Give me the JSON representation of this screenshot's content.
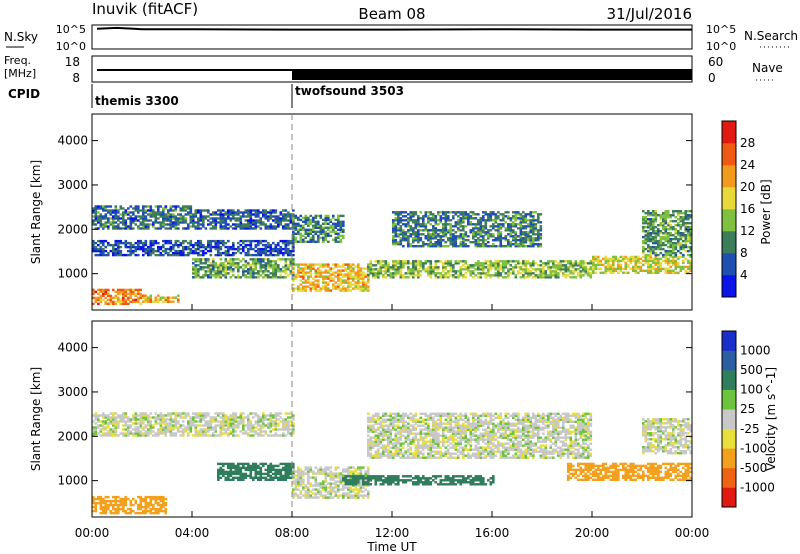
{
  "header": {
    "station": "Inuvik (fitACF)",
    "beam": "Beam 08",
    "date": "31/Jul/2016"
  },
  "noise_panel": {
    "left_label": "N.Sky",
    "right_label": "N.Search",
    "left_ticks": [
      "10^5",
      "10^0"
    ],
    "right_ticks": [
      "10^5",
      "10^0"
    ]
  },
  "freq_panel": {
    "left_label_1": "Freq.",
    "left_label_2": "[MHz]",
    "right_label": "Nave",
    "left_ticks": [
      "18",
      "8"
    ],
    "right_ticks": [
      "60",
      "0"
    ]
  },
  "cpid_panel": {
    "label": "CPID",
    "modes": [
      {
        "name": "themis 3300",
        "start_hour": 0
      },
      {
        "name": "twofsound 3503",
        "start_hour": 8
      }
    ]
  },
  "axes": {
    "ylabel": "Slant Range [km]",
    "xlabel": "Time UT",
    "yticks": [
      1000,
      2000,
      3000,
      4000
    ],
    "xticks": [
      "00:00",
      "04:00",
      "08:00",
      "12:00",
      "16:00",
      "20:00",
      "00:00"
    ]
  },
  "colors": {
    "power": [
      "#0a14e6",
      "#1f4fb0",
      "#3d7d5a",
      "#7fc040",
      "#e8d83a",
      "#f29a1e",
      "#ee5a14",
      "#e01a10"
    ],
    "velocity": [
      "#1a2ec8",
      "#2a5ea0",
      "#2f7d5c",
      "#6cc43c",
      "#c8c8c8",
      "#e8e03a",
      "#f2a01e",
      "#ee6414",
      "#e01a10"
    ],
    "trace": "#000000"
  },
  "chart_data": [
    {
      "type": "line",
      "title": "N.Sky / N.Search",
      "x_unit": "hour UT",
      "x_range": [
        0,
        24
      ],
      "series": [
        {
          "values_log10": [
            [
              0.2,
              4.6
            ],
            [
              1.0,
              4.8
            ],
            [
              2.0,
              4.5
            ],
            [
              4.0,
              4.5
            ],
            [
              8.0,
              4.4
            ],
            [
              12.0,
              4.4
            ],
            [
              16.0,
              4.5
            ],
            [
              20.0,
              4.4
            ],
            [
              24.0,
              4.4
            ]
          ]
        }
      ]
    },
    {
      "type": "line",
      "title": "Freq. / Nave",
      "x_unit": "hour UT",
      "freq_mhz": [
        [
          0.2,
          12
        ],
        [
          24,
          12
        ]
      ],
      "nave": [
        [
          0.2,
          10
        ],
        [
          8.0,
          10
        ],
        [
          8.0,
          20
        ],
        [
          24,
          20
        ]
      ]
    },
    {
      "type": "heatmap",
      "title": "Power",
      "colorbar_label": "Power [dB]",
      "colorbar_ticks": [
        4,
        8,
        12,
        16,
        20,
        24,
        28
      ],
      "ylabel": "Slant Range [km]",
      "ylim": [
        180,
        4600
      ],
      "xlim": [
        0,
        24
      ],
      "regions_hour_km_dB": [
        [
          0.0,
          2.0,
          300,
          650,
          26
        ],
        [
          2.0,
          3.5,
          350,
          520,
          22
        ],
        [
          0.0,
          8.0,
          1400,
          1750,
          8
        ],
        [
          0.0,
          4.0,
          2000,
          2500,
          10
        ],
        [
          4.0,
          8.0,
          2000,
          2450,
          9
        ],
        [
          4.0,
          8.0,
          900,
          1350,
          14
        ],
        [
          8.0,
          11.0,
          600,
          1200,
          22
        ],
        [
          8.0,
          10.0,
          1700,
          2300,
          12
        ],
        [
          12.0,
          18.0,
          1600,
          2400,
          11
        ],
        [
          11.0,
          20.0,
          900,
          1300,
          16
        ],
        [
          20.0,
          24.0,
          1000,
          1400,
          19
        ],
        [
          22.0,
          24.0,
          1400,
          2400,
          14
        ]
      ]
    },
    {
      "type": "heatmap",
      "title": "Velocity",
      "colorbar_label": "Velocity [m s^-1]",
      "colorbar_ticks": [
        1000,
        500,
        100,
        25,
        -25,
        -100,
        -500,
        -1000
      ],
      "ylabel": "Slant Range [km]",
      "ylim": [
        180,
        4600
      ],
      "xlim": [
        0,
        24
      ],
      "regions_hour_km_ms": [
        [
          0.0,
          3.0,
          250,
          650,
          -200
        ],
        [
          0.0,
          8.0,
          2000,
          2500,
          0
        ],
        [
          5.0,
          8.0,
          1000,
          1400,
          200
        ],
        [
          8.0,
          11.0,
          600,
          1300,
          0
        ],
        [
          10.0,
          16.0,
          900,
          1100,
          200
        ],
        [
          11.0,
          20.0,
          1500,
          2500,
          0
        ],
        [
          19.0,
          24.0,
          1000,
          1400,
          -300
        ],
        [
          22.0,
          24.0,
          1600,
          2400,
          0
        ]
      ]
    }
  ]
}
